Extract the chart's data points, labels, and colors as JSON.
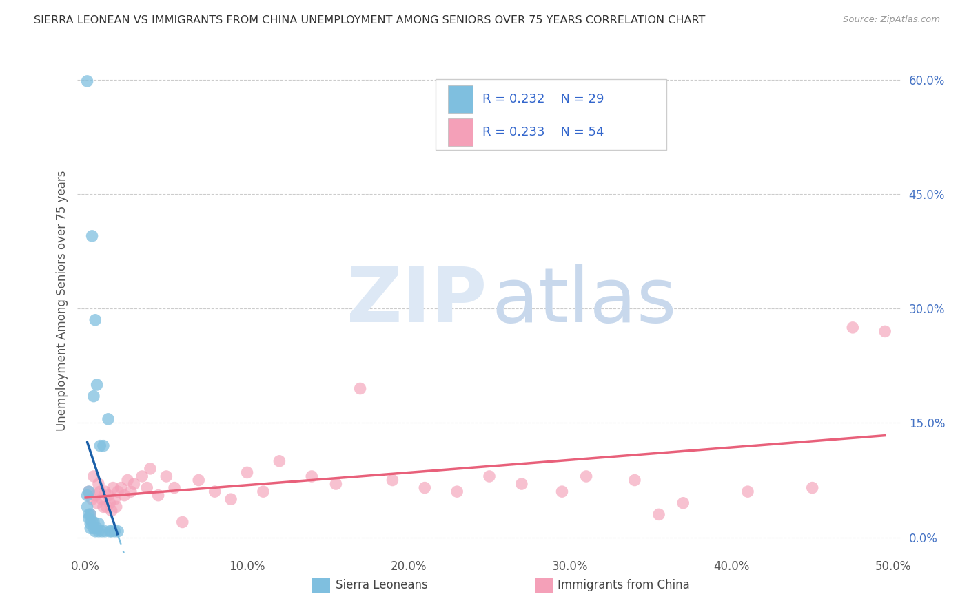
{
  "title": "SIERRA LEONEAN VS IMMIGRANTS FROM CHINA UNEMPLOYMENT AMONG SENIORS OVER 75 YEARS CORRELATION CHART",
  "source": "Source: ZipAtlas.com",
  "ylabel": "Unemployment Among Seniors over 75 years",
  "xlabel_ticks": [
    "0.0%",
    "10.0%",
    "20.0%",
    "30.0%",
    "40.0%",
    "50.0%"
  ],
  "xlabel_vals": [
    0.0,
    0.1,
    0.2,
    0.3,
    0.4,
    0.5
  ],
  "ylabel_ticks": [
    "0.0%",
    "15.0%",
    "30.0%",
    "45.0%",
    "60.0%"
  ],
  "ylabel_vals": [
    0.0,
    0.15,
    0.3,
    0.45,
    0.6
  ],
  "xlim": [
    -0.005,
    0.505
  ],
  "ylim": [
    -0.02,
    0.64
  ],
  "legend_labels": [
    "Sierra Leoneans",
    "Immigrants from China"
  ],
  "blue_color": "#7fbfdf",
  "pink_color": "#f4a0b8",
  "blue_line_color": "#1a5fa8",
  "blue_dash_color": "#7fbfdf",
  "pink_line_color": "#e8607a",
  "watermark_zip": "ZIP",
  "watermark_atlas": "atlas",
  "sl_x": [
    0.001,
    0.001,
    0.001,
    0.002,
    0.002,
    0.002,
    0.003,
    0.003,
    0.003,
    0.004,
    0.004,
    0.005,
    0.005,
    0.005,
    0.006,
    0.006,
    0.007,
    0.007,
    0.008,
    0.008,
    0.009,
    0.01,
    0.011,
    0.012,
    0.014,
    0.015,
    0.016,
    0.018,
    0.02
  ],
  "sl_y": [
    0.598,
    0.055,
    0.04,
    0.03,
    0.06,
    0.025,
    0.018,
    0.03,
    0.012,
    0.395,
    0.02,
    0.185,
    0.012,
    0.02,
    0.285,
    0.008,
    0.2,
    0.012,
    0.018,
    0.008,
    0.12,
    0.008,
    0.12,
    0.008,
    0.155,
    0.008,
    0.008,
    0.008,
    0.008
  ],
  "china_x": [
    0.002,
    0.003,
    0.004,
    0.005,
    0.006,
    0.007,
    0.008,
    0.009,
    0.01,
    0.011,
    0.012,
    0.013,
    0.014,
    0.015,
    0.016,
    0.017,
    0.018,
    0.019,
    0.02,
    0.022,
    0.024,
    0.026,
    0.028,
    0.03,
    0.035,
    0.038,
    0.04,
    0.045,
    0.05,
    0.055,
    0.06,
    0.07,
    0.08,
    0.09,
    0.1,
    0.11,
    0.12,
    0.14,
    0.155,
    0.17,
    0.19,
    0.21,
    0.23,
    0.25,
    0.27,
    0.295,
    0.31,
    0.34,
    0.355,
    0.37,
    0.41,
    0.45,
    0.475,
    0.495
  ],
  "china_y": [
    0.06,
    0.03,
    0.05,
    0.08,
    0.055,
    0.045,
    0.07,
    0.06,
    0.05,
    0.04,
    0.06,
    0.04,
    0.055,
    0.045,
    0.035,
    0.065,
    0.05,
    0.04,
    0.06,
    0.065,
    0.055,
    0.075,
    0.06,
    0.07,
    0.08,
    0.065,
    0.09,
    0.055,
    0.08,
    0.065,
    0.02,
    0.075,
    0.06,
    0.05,
    0.085,
    0.06,
    0.1,
    0.08,
    0.07,
    0.195,
    0.075,
    0.065,
    0.06,
    0.08,
    0.07,
    0.06,
    0.08,
    0.075,
    0.03,
    0.045,
    0.06,
    0.065,
    0.275,
    0.27
  ]
}
